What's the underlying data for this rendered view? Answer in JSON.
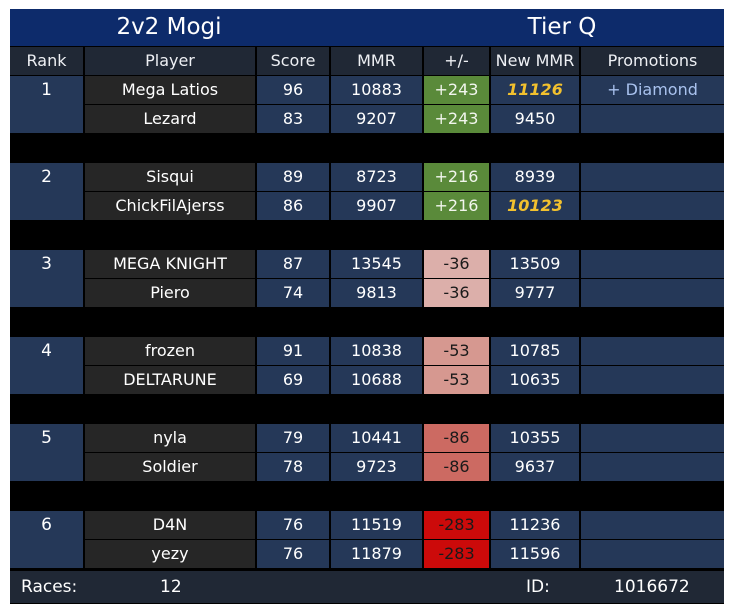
{
  "title": {
    "mode": "2v2 Mogi",
    "tier": "Tier Q"
  },
  "headers": [
    "Rank",
    "Player",
    "Score",
    "MMR",
    "+/-",
    "New MMR",
    "Promotions"
  ],
  "teams": [
    {
      "rank": "1",
      "players": [
        {
          "name": "Mega Latios",
          "score": "96",
          "mmr": "10883",
          "delta": "+243",
          "delta_color": "#5a8a3a",
          "new_mmr": "11126",
          "rank_up": true,
          "promotion": "+ Diamond"
        },
        {
          "name": "Lezard",
          "score": "83",
          "mmr": "9207",
          "delta": "+243",
          "delta_color": "#5a8a3a",
          "new_mmr": "9450",
          "rank_up": false,
          "promotion": ""
        }
      ]
    },
    {
      "rank": "2",
      "players": [
        {
          "name": "Sisqui",
          "score": "89",
          "mmr": "8723",
          "delta": "+216",
          "delta_color": "#5a8a3a",
          "new_mmr": "8939",
          "rank_up": false,
          "promotion": ""
        },
        {
          "name": "ChickFilAjerss",
          "score": "86",
          "mmr": "9907",
          "delta": "+216",
          "delta_color": "#5a8a3a",
          "new_mmr": "10123",
          "rank_up": true,
          "promotion": ""
        }
      ]
    },
    {
      "rank": "3",
      "players": [
        {
          "name": "MEGA KNIGHT",
          "score": "87",
          "mmr": "13545",
          "delta": "-36",
          "delta_color": "#dcafaa",
          "new_mmr": "13509",
          "rank_up": false,
          "promotion": ""
        },
        {
          "name": "Piero",
          "score": "74",
          "mmr": "9813",
          "delta": "-36",
          "delta_color": "#dcafaa",
          "new_mmr": "9777",
          "rank_up": false,
          "promotion": ""
        }
      ]
    },
    {
      "rank": "4",
      "players": [
        {
          "name": "frozen",
          "score": "91",
          "mmr": "10838",
          "delta": "-53",
          "delta_color": "#d69890",
          "new_mmr": "10785",
          "rank_up": false,
          "promotion": ""
        },
        {
          "name": "DELTARUNE",
          "score": "69",
          "mmr": "10688",
          "delta": "-53",
          "delta_color": "#d69890",
          "new_mmr": "10635",
          "rank_up": false,
          "promotion": ""
        }
      ]
    },
    {
      "rank": "5",
      "players": [
        {
          "name": "nyla",
          "score": "79",
          "mmr": "10441",
          "delta": "-86",
          "delta_color": "#cc6a62",
          "new_mmr": "10355",
          "rank_up": false,
          "promotion": ""
        },
        {
          "name": "Soldier",
          "score": "78",
          "mmr": "9723",
          "delta": "-86",
          "delta_color": "#cc6a62",
          "new_mmr": "9637",
          "rank_up": false,
          "promotion": ""
        }
      ]
    },
    {
      "rank": "6",
      "players": [
        {
          "name": "D4N",
          "score": "76",
          "mmr": "11519",
          "delta": "-283",
          "delta_color": "#cc0a0a",
          "new_mmr": "11236",
          "rank_up": false,
          "promotion": ""
        },
        {
          "name": "yezy",
          "score": "76",
          "mmr": "11879",
          "delta": "-283",
          "delta_color": "#cc0a0a",
          "new_mmr": "11596",
          "rank_up": false,
          "promotion": ""
        }
      ]
    }
  ],
  "footer": {
    "races_label": "Races:",
    "races": "12",
    "id_label": "ID:",
    "id": "1016672"
  },
  "colors": {
    "title_bg": "#0d2b6b",
    "header_bg": "#202835",
    "name_bg": "#262626",
    "stat_bg": "#253858",
    "gap": "#000000",
    "rank_up_text": "#f2c12e",
    "promotion_text": "#a9c2ee"
  }
}
